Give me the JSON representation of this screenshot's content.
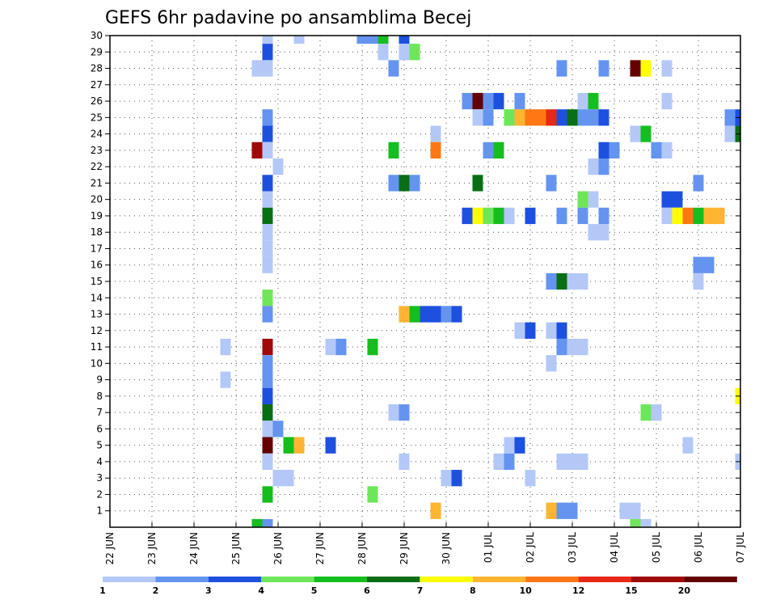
{
  "chart_data": {
    "type": "heatmap",
    "title": "GEFS 6hr padavine po ansamblima Becej",
    "xlabel": "",
    "ylabel": "",
    "x_ticks": [
      "22 JUN",
      "23 JUN",
      "24 JUN",
      "25 JUN",
      "26 JUN",
      "27 JUN",
      "28 JUN",
      "29 JUN",
      "30 JUN",
      "01 JUL",
      "02 JUL",
      "03 JUL",
      "04 JUL",
      "05 JUL",
      "06 JUL",
      "07 JUL"
    ],
    "y_ticks": [
      1,
      2,
      3,
      4,
      5,
      6,
      7,
      8,
      9,
      10,
      11,
      12,
      13,
      14,
      15,
      16,
      17,
      18,
      19,
      20,
      21,
      22,
      23,
      24,
      25,
      26,
      27,
      28,
      29,
      30
    ],
    "xlim": [
      0,
      60
    ],
    "ylim": [
      0,
      30
    ],
    "grid": true,
    "legend": {
      "placement": "bottom",
      "labels": [
        "1",
        "2",
        "3",
        "4",
        "5",
        "6",
        "7",
        "8",
        "10",
        "12",
        "15",
        "20"
      ],
      "colors": [
        "#b4c8f8",
        "#6494f0",
        "#1e50e0",
        "#6ee65a",
        "#14be1e",
        "#0a6e14",
        "#ffff00",
        "#ffb432",
        "#ff7814",
        "#e62814",
        "#a00a0a",
        "#640000"
      ]
    },
    "cells_format": "[x_step, member, level_index]",
    "cells": [
      [
        15,
        30,
        0
      ],
      [
        18,
        30,
        0
      ],
      [
        24,
        30,
        1
      ],
      [
        25,
        30,
        1
      ],
      [
        26,
        30,
        4
      ],
      [
        28,
        30,
        2
      ],
      [
        15,
        29,
        2
      ],
      [
        26,
        29,
        0
      ],
      [
        28,
        29,
        0
      ],
      [
        29,
        29,
        3
      ],
      [
        14,
        28,
        0
      ],
      [
        15,
        28,
        0
      ],
      [
        27,
        28,
        1
      ],
      [
        43,
        28,
        1
      ],
      [
        47,
        28,
        1
      ],
      [
        50,
        28,
        11
      ],
      [
        51,
        28,
        6
      ],
      [
        53,
        28,
        0
      ],
      [
        34,
        26,
        1
      ],
      [
        35,
        26,
        11
      ],
      [
        36,
        26,
        1
      ],
      [
        37,
        26,
        2
      ],
      [
        39,
        26,
        1
      ],
      [
        45,
        26,
        0
      ],
      [
        46,
        26,
        4
      ],
      [
        53,
        26,
        0
      ],
      [
        15,
        25,
        1
      ],
      [
        35,
        25,
        0
      ],
      [
        36,
        25,
        1
      ],
      [
        38,
        25,
        3
      ],
      [
        39,
        25,
        7
      ],
      [
        40,
        25,
        8
      ],
      [
        41,
        25,
        8
      ],
      [
        42,
        25,
        9
      ],
      [
        43,
        25,
        2
      ],
      [
        44,
        25,
        5
      ],
      [
        45,
        25,
        1
      ],
      [
        46,
        25,
        1
      ],
      [
        47,
        25,
        2
      ],
      [
        59,
        25,
        1
      ],
      [
        60,
        25,
        2
      ],
      [
        15,
        24,
        2
      ],
      [
        31,
        24,
        0
      ],
      [
        50,
        24,
        0
      ],
      [
        51,
        24,
        4
      ],
      [
        59,
        24,
        0
      ],
      [
        60,
        24,
        5
      ],
      [
        14,
        23,
        10
      ],
      [
        15,
        23,
        0
      ],
      [
        27,
        23,
        4
      ],
      [
        31,
        23,
        8
      ],
      [
        36,
        23,
        1
      ],
      [
        37,
        23,
        4
      ],
      [
        47,
        23,
        2
      ],
      [
        48,
        23,
        1
      ],
      [
        52,
        23,
        1
      ],
      [
        53,
        23,
        0
      ],
      [
        16,
        22,
        0
      ],
      [
        46,
        22,
        0
      ],
      [
        47,
        22,
        1
      ],
      [
        15,
        21,
        2
      ],
      [
        27,
        21,
        1
      ],
      [
        28,
        21,
        5
      ],
      [
        29,
        21,
        1
      ],
      [
        35,
        21,
        5
      ],
      [
        42,
        21,
        1
      ],
      [
        56,
        21,
        1
      ],
      [
        15,
        20,
        0
      ],
      [
        45,
        20,
        3
      ],
      [
        46,
        20,
        0
      ],
      [
        53,
        20,
        2
      ],
      [
        54,
        20,
        2
      ],
      [
        15,
        19,
        5
      ],
      [
        34,
        19,
        2
      ],
      [
        35,
        19,
        6
      ],
      [
        36,
        19,
        3
      ],
      [
        37,
        19,
        4
      ],
      [
        38,
        19,
        0
      ],
      [
        40,
        19,
        2
      ],
      [
        43,
        19,
        1
      ],
      [
        45,
        19,
        1
      ],
      [
        47,
        19,
        1
      ],
      [
        53,
        19,
        0
      ],
      [
        54,
        19,
        6
      ],
      [
        55,
        19,
        8
      ],
      [
        56,
        19,
        4
      ],
      [
        57,
        19,
        7
      ],
      [
        58,
        19,
        7
      ],
      [
        15,
        18,
        0
      ],
      [
        46,
        18,
        0
      ],
      [
        47,
        18,
        0
      ],
      [
        15,
        17,
        0
      ],
      [
        15,
        16,
        0
      ],
      [
        56,
        16,
        1
      ],
      [
        57,
        16,
        1
      ],
      [
        42,
        15,
        1
      ],
      [
        43,
        15,
        5
      ],
      [
        44,
        15,
        0
      ],
      [
        45,
        15,
        0
      ],
      [
        56,
        15,
        0
      ],
      [
        15,
        14,
        3
      ],
      [
        15,
        13,
        1
      ],
      [
        28,
        13,
        7
      ],
      [
        29,
        13,
        4
      ],
      [
        30,
        13,
        2
      ],
      [
        31,
        13,
        2
      ],
      [
        32,
        13,
        1
      ],
      [
        33,
        13,
        2
      ],
      [
        39,
        12,
        0
      ],
      [
        40,
        12,
        2
      ],
      [
        42,
        12,
        0
      ],
      [
        43,
        12,
        2
      ],
      [
        11,
        11,
        0
      ],
      [
        15,
        11,
        10
      ],
      [
        21,
        11,
        0
      ],
      [
        22,
        11,
        1
      ],
      [
        25,
        11,
        4
      ],
      [
        43,
        11,
        1
      ],
      [
        44,
        11,
        0
      ],
      [
        45,
        11,
        0
      ],
      [
        15,
        10,
        1
      ],
      [
        42,
        10,
        0
      ],
      [
        11,
        9,
        0
      ],
      [
        15,
        9,
        1
      ],
      [
        15,
        8,
        2
      ],
      [
        60,
        8,
        6
      ],
      [
        15,
        7,
        5
      ],
      [
        27,
        7,
        0
      ],
      [
        28,
        7,
        1
      ],
      [
        51,
        7,
        3
      ],
      [
        52,
        7,
        0
      ],
      [
        15,
        6,
        0
      ],
      [
        16,
        6,
        1
      ],
      [
        15,
        5,
        11
      ],
      [
        17,
        5,
        4
      ],
      [
        18,
        5,
        7
      ],
      [
        21,
        5,
        2
      ],
      [
        38,
        5,
        0
      ],
      [
        39,
        5,
        2
      ],
      [
        55,
        5,
        0
      ],
      [
        15,
        4,
        0
      ],
      [
        28,
        4,
        0
      ],
      [
        37,
        4,
        0
      ],
      [
        38,
        4,
        1
      ],
      [
        43,
        4,
        0
      ],
      [
        44,
        4,
        0
      ],
      [
        45,
        4,
        0
      ],
      [
        60,
        4,
        0
      ],
      [
        16,
        3,
        0
      ],
      [
        17,
        3,
        0
      ],
      [
        32,
        3,
        0
      ],
      [
        33,
        3,
        2
      ],
      [
        40,
        3,
        0
      ],
      [
        15,
        2,
        4
      ],
      [
        25,
        2,
        3
      ],
      [
        31,
        1,
        7
      ],
      [
        42,
        1,
        7
      ],
      [
        43,
        1,
        1
      ],
      [
        44,
        1,
        1
      ],
      [
        49,
        1,
        0
      ],
      [
        50,
        1,
        0
      ],
      [
        14,
        0,
        4
      ],
      [
        15,
        0,
        1
      ],
      [
        50,
        0,
        3
      ],
      [
        51,
        0,
        0
      ]
    ]
  }
}
